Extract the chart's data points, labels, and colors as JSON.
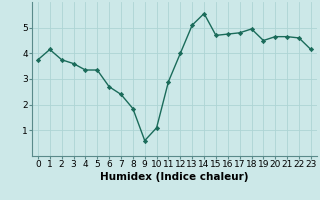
{
  "x": [
    0,
    1,
    2,
    3,
    4,
    5,
    6,
    7,
    8,
    9,
    10,
    11,
    12,
    13,
    14,
    15,
    16,
    17,
    18,
    19,
    20,
    21,
    22,
    23
  ],
  "y": [
    3.75,
    4.15,
    3.75,
    3.6,
    3.35,
    3.35,
    2.7,
    2.4,
    1.85,
    0.6,
    1.1,
    2.9,
    4.0,
    5.1,
    5.55,
    4.7,
    4.75,
    4.8,
    4.95,
    4.5,
    4.65,
    4.65,
    4.6,
    4.15
  ],
  "line_color": "#1a6b5a",
  "bg_color": "#cce8e8",
  "grid_color": "#aed4d4",
  "xlabel": "Humidex (Indice chaleur)",
  "xlabel_fontsize": 7.5,
  "xlim": [
    -0.5,
    23.5
  ],
  "ylim": [
    0,
    6
  ],
  "yticks": [
    1,
    2,
    3,
    4,
    5
  ],
  "xticks": [
    0,
    1,
    2,
    3,
    4,
    5,
    6,
    7,
    8,
    9,
    10,
    11,
    12,
    13,
    14,
    15,
    16,
    17,
    18,
    19,
    20,
    21,
    22,
    23
  ],
  "marker": "D",
  "marker_size": 2.2,
  "linewidth": 1.0,
  "tick_fontsize": 6.5,
  "spine_color": "#5a8a8a"
}
